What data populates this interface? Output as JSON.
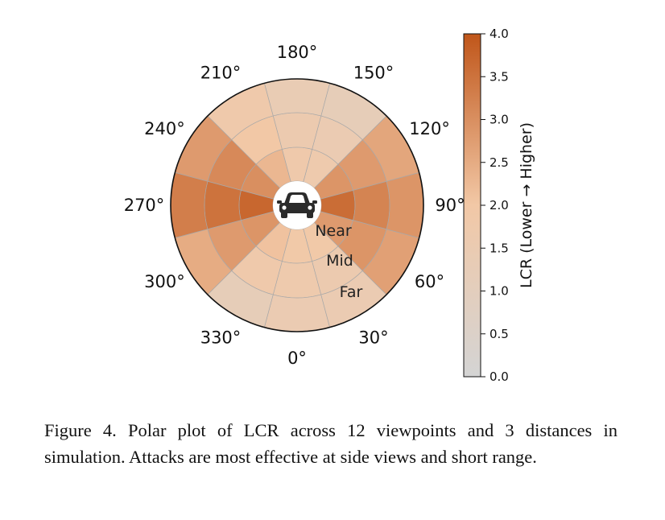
{
  "chart_data": {
    "type": "polar-heatmap",
    "angle_labels": [
      "0°",
      "30°",
      "60°",
      "90°",
      "120°",
      "150°",
      "180°",
      "210°",
      "240°",
      "270°",
      "300°",
      "330°"
    ],
    "angles": [
      0,
      30,
      60,
      90,
      120,
      150,
      180,
      210,
      240,
      270,
      300,
      330
    ],
    "rings": [
      "Near",
      "Mid",
      "Far"
    ],
    "values": {
      "Near": [
        1.9,
        1.9,
        2.8,
        3.6,
        2.9,
        1.7,
        1.8,
        2.3,
        3.0,
        3.7,
        2.9,
        2.1
      ],
      "Mid": [
        1.7,
        1.6,
        2.9,
        3.2,
        2.8,
        1.5,
        1.6,
        2.0,
        3.1,
        3.5,
        2.8,
        1.8
      ],
      "Far": [
        1.5,
        1.5,
        2.7,
        2.9,
        2.6,
        1.2,
        1.4,
        1.8,
        2.8,
        3.3,
        2.5,
        1.2
      ]
    },
    "colorbar": {
      "label": "LCR (Lower → Higher)",
      "min": 0.0,
      "max": 4.0,
      "ticks": [
        "0.0",
        "0.5",
        "1.0",
        "1.5",
        "2.0",
        "2.5",
        "3.0",
        "3.5",
        "4.0"
      ],
      "color_low": "#d4d4d4",
      "color_mid": "#f2c8a6",
      "color_high": "#c0561a"
    },
    "center_icon": "car-icon"
  },
  "caption": "Figure 4. Polar plot of LCR across 12 viewpoints and 3 distances in simulation. Attacks are most effective at side views and short range."
}
